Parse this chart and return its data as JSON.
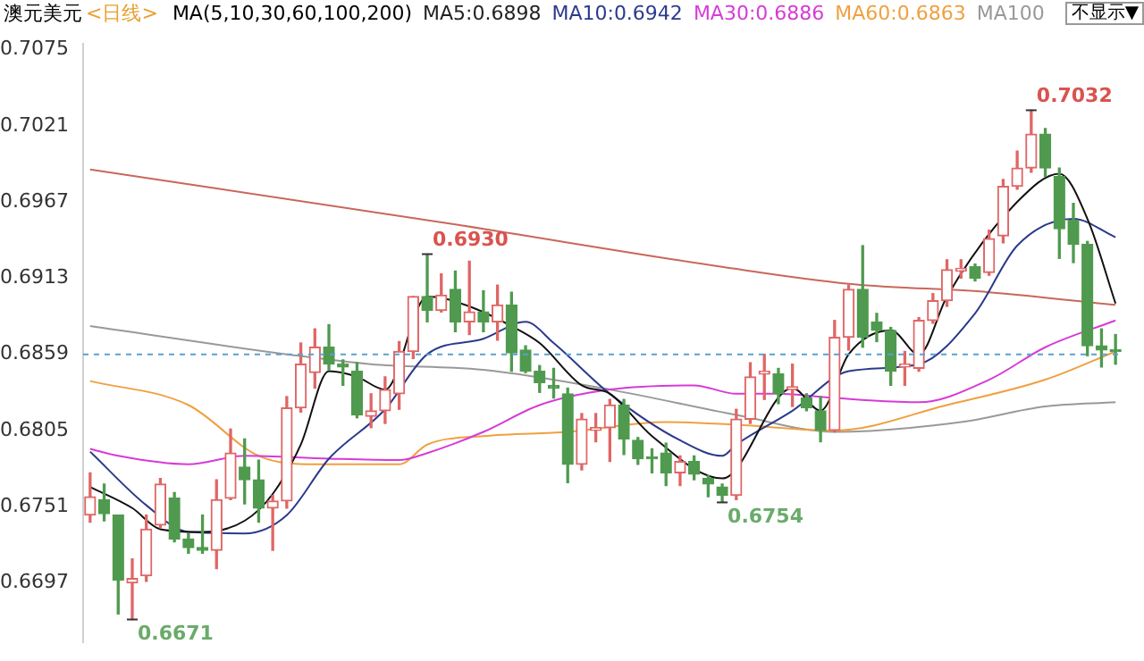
{
  "chart_data": {
    "type": "candlestick",
    "title": "澳元美元",
    "subtitle": "<日线>",
    "legend_title": "MA(5,10,30,60,100,200)",
    "legend": "top",
    "tick_labels": "y",
    "categories": [
      null,
      null,
      null,
      null,
      null,
      null,
      null,
      null,
      null,
      null,
      null,
      null,
      null,
      null,
      null,
      null,
      null,
      null,
      null,
      null,
      null,
      null,
      null,
      null,
      null,
      null,
      null,
      null,
      null,
      null,
      null,
      null,
      null,
      null,
      null,
      null,
      null,
      null,
      null,
      null,
      null,
      null,
      null,
      null,
      null,
      null,
      null,
      null,
      null,
      null,
      null,
      null,
      null,
      null,
      null,
      null,
      null,
      null,
      null,
      null,
      null,
      null,
      null,
      null,
      null,
      null,
      null,
      null,
      null,
      null,
      null,
      null,
      null,
      null
    ],
    "ohlc": [
      [
        0.6745,
        0.6775,
        0.674,
        0.6758
      ],
      [
        0.6756,
        0.6767,
        0.6741,
        0.6746
      ],
      [
        0.6745,
        0.6745,
        0.6675,
        0.6699
      ],
      [
        0.6697,
        0.6714,
        0.6671,
        0.67
      ],
      [
        0.6702,
        0.6745,
        0.6698,
        0.6735
      ],
      [
        0.6738,
        0.6771,
        0.6736,
        0.6767
      ],
      [
        0.6757,
        0.6761,
        0.6726,
        0.6728
      ],
      [
        0.6728,
        0.6732,
        0.6718,
        0.6722
      ],
      [
        0.6722,
        0.6745,
        0.6718,
        0.672
      ],
      [
        0.672,
        0.677,
        0.6707,
        0.6756
      ],
      [
        0.6757,
        0.6806,
        0.6756,
        0.6789
      ],
      [
        0.6779,
        0.6799,
        0.6753,
        0.677
      ],
      [
        0.677,
        0.6784,
        0.674,
        0.675
      ],
      [
        0.675,
        0.6759,
        0.672,
        0.6755
      ],
      [
        0.6755,
        0.6829,
        0.675,
        0.6821
      ],
      [
        0.6821,
        0.6867,
        0.6818,
        0.6852
      ],
      [
        0.6846,
        0.6877,
        0.6835,
        0.6864
      ],
      [
        0.6864,
        0.688,
        0.6848,
        0.6852
      ],
      [
        0.6852,
        0.6855,
        0.6837,
        0.685
      ],
      [
        0.6847,
        0.6853,
        0.6814,
        0.6816
      ],
      [
        0.6815,
        0.6831,
        0.6807,
        0.6819
      ],
      [
        0.6819,
        0.6843,
        0.681,
        0.6834
      ],
      [
        0.6831,
        0.6868,
        0.682,
        0.6861
      ],
      [
        0.6861,
        0.69,
        0.6856,
        0.69
      ],
      [
        0.69,
        0.693,
        0.6882,
        0.689
      ],
      [
        0.689,
        0.6916,
        0.6889,
        0.6901
      ],
      [
        0.6905,
        0.6918,
        0.6875,
        0.6882
      ],
      [
        0.6882,
        0.6925,
        0.6873,
        0.6889
      ],
      [
        0.6889,
        0.6904,
        0.6875,
        0.6882
      ],
      [
        0.6882,
        0.6908,
        0.6869,
        0.6894
      ],
      [
        0.6894,
        0.6903,
        0.6847,
        0.686
      ],
      [
        0.6862,
        0.6865,
        0.6846,
        0.6847
      ],
      [
        0.6847,
        0.6851,
        0.6832,
        0.6839
      ],
      [
        0.6837,
        0.6849,
        0.6828,
        0.6835
      ],
      [
        0.6831,
        0.6835,
        0.6768,
        0.6781
      ],
      [
        0.6781,
        0.6817,
        0.6777,
        0.6813
      ],
      [
        0.6805,
        0.6817,
        0.6797,
        0.6807
      ],
      [
        0.6807,
        0.6827,
        0.6783,
        0.6823
      ],
      [
        0.6823,
        0.6827,
        0.6788,
        0.6799
      ],
      [
        0.6798,
        0.68,
        0.6781,
        0.6785
      ],
      [
        0.6786,
        0.6792,
        0.6775,
        0.6785
      ],
      [
        0.6789,
        0.6796,
        0.6766,
        0.6775
      ],
      [
        0.6775,
        0.6787,
        0.6766,
        0.6783
      ],
      [
        0.6783,
        0.6787,
        0.677,
        0.6774
      ],
      [
        0.6771,
        0.6773,
        0.6758,
        0.6767
      ],
      [
        0.6765,
        0.6767,
        0.6754,
        0.6759
      ],
      [
        0.6759,
        0.682,
        0.6756,
        0.6813
      ],
      [
        0.6813,
        0.6853,
        0.681,
        0.6843
      ],
      [
        0.6845,
        0.6859,
        0.6827,
        0.6847
      ],
      [
        0.6845,
        0.6849,
        0.6824,
        0.6831
      ],
      [
        0.6834,
        0.6852,
        0.6822,
        0.6836
      ],
      [
        0.6828,
        0.6831,
        0.6819,
        0.6821
      ],
      [
        0.6819,
        0.6829,
        0.6797,
        0.6805
      ],
      [
        0.6805,
        0.6883,
        0.6804,
        0.6871
      ],
      [
        0.6871,
        0.6908,
        0.6862,
        0.6905
      ],
      [
        0.6905,
        0.6936,
        0.6864,
        0.6871
      ],
      [
        0.6882,
        0.6888,
        0.6868,
        0.6876
      ],
      [
        0.6876,
        0.6878,
        0.6837,
        0.6847
      ],
      [
        0.685,
        0.6861,
        0.6837,
        0.6852
      ],
      [
        0.6849,
        0.6885,
        0.6847,
        0.6883
      ],
      [
        0.6883,
        0.6902,
        0.6881,
        0.6897
      ],
      [
        0.6897,
        0.6926,
        0.6893,
        0.6919
      ],
      [
        0.6918,
        0.6926,
        0.6913,
        0.692
      ],
      [
        0.6921,
        0.6923,
        0.6911,
        0.6913
      ],
      [
        0.6917,
        0.6947,
        0.6915,
        0.6941
      ],
      [
        0.6943,
        0.6983,
        0.6938,
        0.6978
      ],
      [
        0.6978,
        0.7003,
        0.6976,
        0.6991
      ],
      [
        0.6991,
        0.7032,
        0.6988,
        0.7015
      ],
      [
        0.7015,
        0.7019,
        0.6985,
        0.6991
      ],
      [
        0.6985,
        0.6991,
        0.6927,
        0.6948
      ],
      [
        0.6954,
        0.6966,
        0.6924,
        0.6937
      ],
      [
        0.6937,
        0.6939,
        0.6858,
        0.6865
      ],
      [
        0.6865,
        0.6877,
        0.685,
        0.6862
      ],
      [
        0.6862,
        0.6873,
        0.6852,
        0.6861
      ]
    ],
    "colors": [
      "#e06666",
      "#4f9a4f",
      "#4f9a4f",
      "#e06666",
      "#e06666",
      "#e06666",
      "#4f9a4f",
      "#4f9a4f",
      "#4f9a4f",
      "#e06666",
      "#e06666",
      "#4f9a4f",
      "#4f9a4f",
      "#e06666",
      "#e06666",
      "#e06666",
      "#e06666",
      "#4f9a4f",
      "#4f9a4f",
      "#4f9a4f",
      "#e06666",
      "#e06666",
      "#e06666",
      "#e06666",
      "#4f9a4f",
      "#e06666",
      "#4f9a4f",
      "#e06666",
      "#4f9a4f",
      "#e06666",
      "#4f9a4f",
      "#4f9a4f",
      "#4f9a4f",
      "#4f9a4f",
      "#4f9a4f",
      "#e06666",
      "#e06666",
      "#e06666",
      "#4f9a4f",
      "#4f9a4f",
      "#4f9a4f",
      "#4f9a4f",
      "#e06666",
      "#4f9a4f",
      "#4f9a4f",
      "#4f9a4f",
      "#e06666",
      "#e06666",
      "#e06666",
      "#4f9a4f",
      "#e06666",
      "#4f9a4f",
      "#4f9a4f",
      "#e06666",
      "#e06666",
      "#4f9a4f",
      "#4f9a4f",
      "#4f9a4f",
      "#e06666",
      "#e06666",
      "#e06666",
      "#e06666",
      "#e06666",
      "#4f9a4f",
      "#e06666",
      "#e06666",
      "#e06666",
      "#e06666",
      "#4f9a4f",
      "#4f9a4f",
      "#4f9a4f",
      "#4f9a4f",
      "#4f9a4f",
      "#4f9a4f"
    ],
    "series": [
      {
        "type": "line",
        "name": "MA5:0.6898",
        "color": "#111111",
        "values": [
          0.6765,
          null,
          null,
          0.675,
          null,
          0.6735,
          null,
          null,
          0.6733,
          null,
          null,
          0.6741,
          null,
          0.676,
          null,
          0.6795,
          null,
          0.6847,
          null,
          0.6843,
          null,
          0.6834,
          null,
          null,
          0.69,
          null,
          null,
          0.6893,
          null,
          null,
          0.6879,
          null,
          0.6867,
          null,
          null,
          0.6837,
          null,
          0.6831,
          null,
          null,
          0.6801,
          null,
          null,
          null,
          null,
          0.6771,
          null,
          null,
          null,
          null,
          0.6835,
          null,
          0.6819,
          null,
          0.6859,
          null,
          null,
          0.6876,
          null,
          0.6859,
          null,
          0.69,
          null,
          null,
          null,
          null,
          0.6967,
          null,
          null,
          0.6987,
          null,
          0.6955,
          null,
          0.6895
        ]
      },
      {
        "type": "line",
        "name": "MA10:0.6942",
        "color": "#2b3a8c",
        "values": [
          0.679,
          null,
          null,
          null,
          0.6752,
          null,
          null,
          0.6733,
          null,
          null,
          null,
          0.6732,
          null,
          null,
          0.6745,
          null,
          null,
          0.6785,
          null,
          null,
          null,
          0.682,
          null,
          null,
          0.6859,
          null,
          null,
          null,
          0.687,
          null,
          null,
          0.6882,
          null,
          0.6867,
          null,
          null,
          null,
          0.6831,
          null,
          null,
          null,
          null,
          0.6798,
          null,
          null,
          0.6787,
          0.6795,
          null,
          null,
          null,
          0.6819,
          null,
          null,
          null,
          0.6847,
          null,
          null,
          null,
          null,
          0.6852,
          null,
          null,
          null,
          0.6888,
          null,
          null,
          0.6936,
          null,
          null,
          null,
          0.6955,
          null,
          null,
          0.6942
        ]
      },
      {
        "type": "line",
        "name": "MA30:0.6886",
        "color": "#d63bd6",
        "values": [
          0.6792,
          null,
          0.6787,
          null,
          null,
          null,
          null,
          0.6781,
          null,
          null,
          null,
          0.6787,
          null,
          null,
          null,
          null,
          null,
          0.6785,
          null,
          null,
          null,
          null,
          0.6784,
          null,
          0.6789,
          null,
          null,
          null,
          0.6804,
          null,
          null,
          null,
          0.6823,
          null,
          null,
          null,
          null,
          0.6834,
          null,
          null,
          null,
          null,
          null,
          0.6837,
          null,
          null,
          0.6831,
          null,
          null,
          0.6831,
          null,
          null,
          null,
          0.6828,
          null,
          null,
          null,
          null,
          null,
          0.6825,
          null,
          null,
          null,
          null,
          0.6841,
          null,
          null,
          null,
          0.6864,
          null,
          null,
          null,
          null,
          0.6883
        ]
      },
      {
        "type": "line",
        "name": "MA60:0.6863",
        "color": "#f0a040",
        "values": [
          0.684,
          null,
          null,
          null,
          null,
          null,
          null,
          0.6823,
          null,
          null,
          null,
          null,
          0.6787,
          null,
          null,
          null,
          0.6781,
          null,
          null,
          null,
          null,
          null,
          0.6781,
          null,
          0.6795,
          null,
          null,
          null,
          0.6801,
          null,
          null,
          null,
          null,
          null,
          0.6804,
          null,
          null,
          null,
          null,
          null,
          null,
          0.6811,
          null,
          null,
          null,
          null,
          0.6809,
          null,
          null,
          null,
          null,
          null,
          null,
          0.6805,
          null,
          null,
          null,
          null,
          null,
          null,
          null,
          0.6823,
          null,
          null,
          null,
          null,
          null,
          null,
          0.6841,
          null,
          null,
          null,
          null,
          0.6861
        ]
      },
      {
        "type": "line",
        "name": "MA100",
        "color": "#999999",
        "values": [
          0.6879,
          null,
          null,
          null,
          null,
          null,
          null,
          null,
          null,
          null,
          null,
          null,
          null,
          null,
          0.6859,
          null,
          null,
          null,
          null,
          null,
          0.6852,
          null,
          null,
          null,
          null,
          null,
          null,
          null,
          0.6848,
          null,
          null,
          null,
          null,
          null,
          null,
          null,
          null,
          0.6834,
          null,
          null,
          null,
          null,
          null,
          null,
          null,
          null,
          0.6816,
          null,
          null,
          null,
          null,
          null,
          null,
          0.6804,
          null,
          null,
          null,
          null,
          null,
          null,
          null,
          null,
          0.6811,
          null,
          null,
          null,
          null,
          null,
          0.6822,
          null,
          null,
          null,
          null,
          0.6825
        ]
      },
      {
        "type": "line",
        "color": "#c8685a",
        "values": [
          0.699,
          null,
          null,
          null,
          null,
          null,
          null,
          null,
          null,
          null,
          null,
          null,
          null,
          null,
          null,
          null,
          null,
          null,
          null,
          null,
          null,
          null,
          null,
          null,
          null,
          null,
          0.6951,
          null,
          null,
          null,
          null,
          null,
          null,
          null,
          null,
          null,
          null,
          null,
          null,
          null,
          null,
          null,
          null,
          null,
          null,
          0.6921,
          null,
          null,
          null,
          null,
          null,
          null,
          null,
          null,
          0.6909,
          null,
          null,
          null,
          null,
          null,
          null,
          null,
          null,
          null,
          0.6903,
          null,
          null,
          null,
          null,
          null,
          null,
          null,
          null,
          0.6894
        ]
      }
    ],
    "ylim": [
      0.6655,
      0.7079
    ],
    "yticks": [
      0.6697,
      0.6751,
      0.6805,
      0.6859,
      0.6913,
      0.6967,
      0.7021,
      0.7075
    ],
    "ref_lines": [
      {
        "axis": "y",
        "value": 0.6859,
        "color": "#5aa0d0",
        "line_style": "dashed"
      }
    ],
    "annotations": [
      "0.6930",
      "0.7032",
      "0.6754",
      "0.6671",
      "不显示▼"
    ]
  }
}
